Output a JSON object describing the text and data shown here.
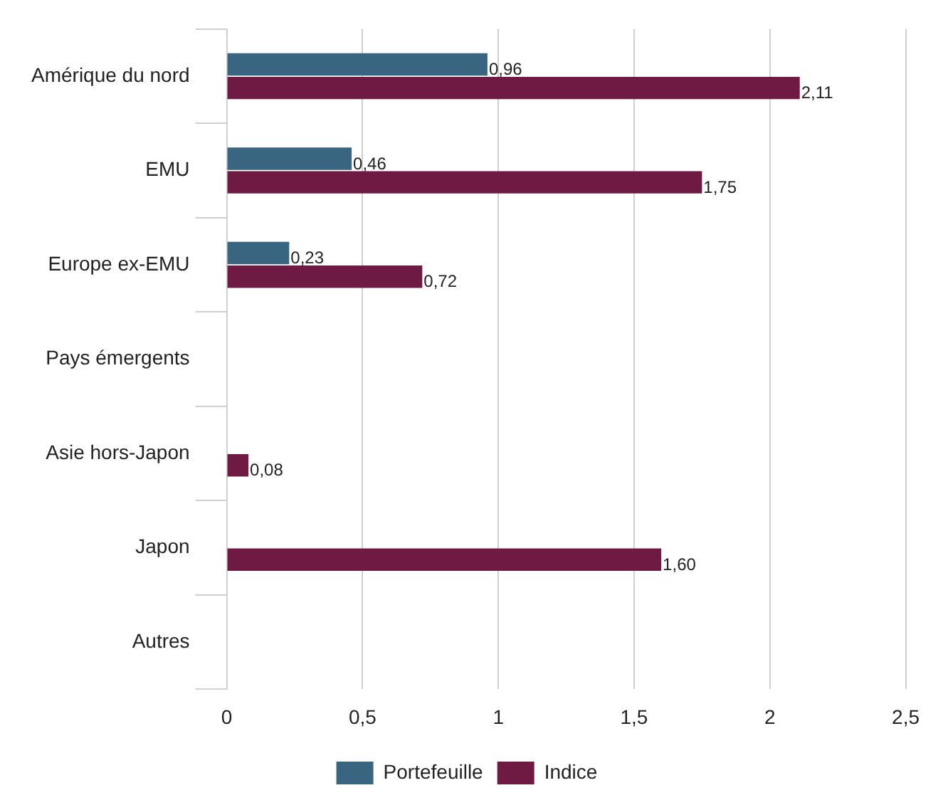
{
  "chart_data": {
    "type": "bar",
    "orientation": "horizontal",
    "categories": [
      "Amérique du nord",
      "EMU",
      "Europe ex-EMU",
      "Pays émergents",
      "Asie hors-Japon",
      "Japon",
      "Autres"
    ],
    "series": [
      {
        "name": "Portefeuille",
        "color": "#3a6580",
        "values": [
          0.96,
          0.46,
          0.23,
          null,
          null,
          null,
          null
        ],
        "value_labels": [
          "0,96",
          "0,46",
          "0,23",
          null,
          null,
          null,
          null
        ]
      },
      {
        "name": "Indice",
        "color": "#6e1a42",
        "values": [
          2.11,
          1.75,
          0.72,
          null,
          0.08,
          1.6,
          null
        ],
        "value_labels": [
          "2,11",
          "1,75",
          "0,72",
          null,
          "0,08",
          "1,60",
          null
        ]
      }
    ],
    "xlim": [
      0,
      2.5
    ],
    "xticks": [
      0,
      {
        "value": 0.5,
        "label": "0,5"
      },
      1,
      {
        "value": 1.5,
        "label": "1,5"
      },
      2,
      {
        "value": 2.5,
        "label": "2,5"
      }
    ],
    "grid": "x",
    "legend": "bottom"
  }
}
